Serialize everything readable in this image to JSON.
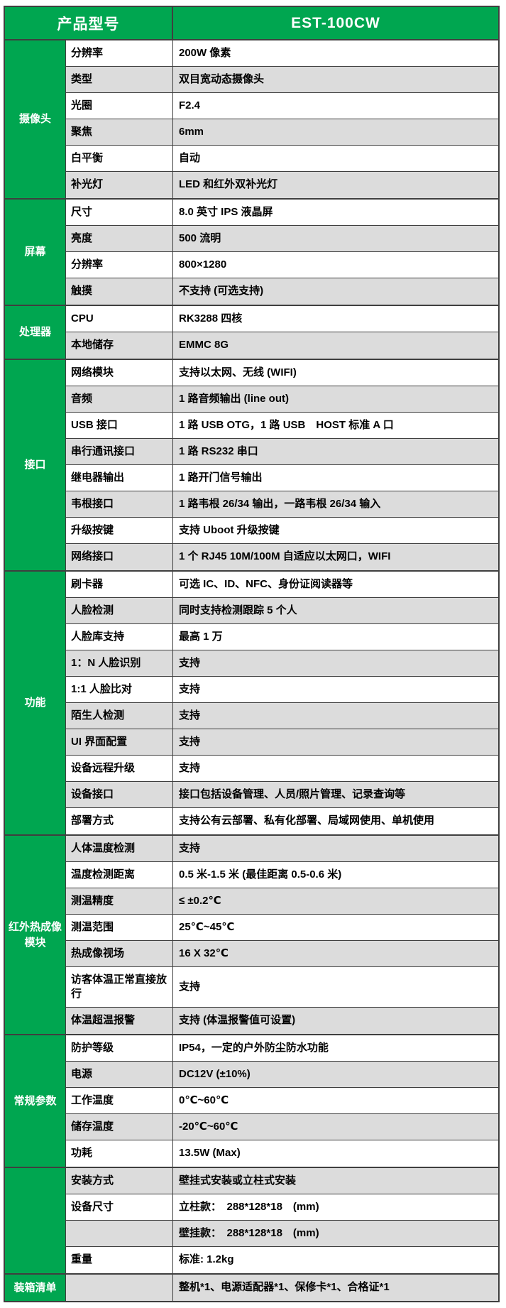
{
  "header": {
    "model_label": "产品型号",
    "model_value": "EST-100CW"
  },
  "colors": {
    "green": "#00a650",
    "gray_row": "#dcdcdc",
    "white_row": "#ffffff",
    "border": "#3f3f3f",
    "header_text": "#ffffff",
    "cell_text": "#000000"
  },
  "sections": [
    {
      "label": "摄像头",
      "rows": [
        {
          "param": "分辨率",
          "value": "200W 像素",
          "shade": "w"
        },
        {
          "param": "类型",
          "value": "双目宽动态摄像头",
          "shade": "g"
        },
        {
          "param": "光圈",
          "value": "F2.4",
          "shade": "w"
        },
        {
          "param": "聚焦",
          "value": "6mm",
          "shade": "g"
        },
        {
          "param": "白平衡",
          "value": "自动",
          "shade": "w"
        },
        {
          "param": "补光灯",
          "value": "LED 和红外双补光灯",
          "shade": "g"
        }
      ]
    },
    {
      "label": "屏幕",
      "rows": [
        {
          "param": "尺寸",
          "value": "8.0 英寸 IPS 液晶屏",
          "shade": "w"
        },
        {
          "param": "亮度",
          "value": "500 流明",
          "shade": "g"
        },
        {
          "param": "分辨率",
          "value": "800×1280",
          "shade": "w"
        },
        {
          "param": "触摸",
          "value": "不支持 (可选支持)",
          "shade": "g"
        }
      ]
    },
    {
      "label": "处理器",
      "rows": [
        {
          "param": "CPU",
          "value": "RK3288 四核",
          "shade": "w"
        },
        {
          "param": "本地储存",
          "value": "EMMC 8G",
          "shade": "g"
        }
      ]
    },
    {
      "label": "接口",
      "rows": [
        {
          "param": "网络模块",
          "value": "支持以太网、无线 (WIFI)",
          "shade": "w"
        },
        {
          "param": "音频",
          "value": "1 路音频输出 (line out)",
          "shade": "g"
        },
        {
          "param": "USB 接口",
          "value": "1 路 USB OTG，1 路 USB　HOST 标准 A 口",
          "shade": "w"
        },
        {
          "param": "串行通讯接口",
          "value": "1 路 RS232 串口",
          "shade": "g"
        },
        {
          "param": "继电器输出",
          "value": "1 路开门信号输出",
          "shade": "w"
        },
        {
          "param": "韦根接口",
          "value": "1 路韦根 26/34 输出，一路韦根 26/34 输入",
          "shade": "g"
        },
        {
          "param": "升级按键",
          "value": "支持 Uboot 升级按键",
          "shade": "w"
        },
        {
          "param": "网络接口",
          "value": "1 个 RJ45 10M/100M 自适应以太网口，WIFI",
          "shade": "g"
        }
      ]
    },
    {
      "label": "功能",
      "rows": [
        {
          "param": "刷卡器",
          "value": "可选 IC、ID、NFC、身份证阅读器等",
          "shade": "w"
        },
        {
          "param": "人脸检测",
          "value": "同时支持检测跟踪 5 个人",
          "shade": "g"
        },
        {
          "param": "人脸库支持",
          "value": "最高 1 万",
          "shade": "w"
        },
        {
          "param": "1：N 人脸识别",
          "value": "支持",
          "shade": "g"
        },
        {
          "param": "1:1 人脸比对",
          "value": "支持",
          "shade": "w"
        },
        {
          "param": "陌生人检测",
          "value": "支持",
          "shade": "g"
        },
        {
          "param": "UI 界面配置",
          "value": "支持",
          "shade": "g"
        },
        {
          "param": "设备远程升级",
          "value": "支持",
          "shade": "w"
        },
        {
          "param": "设备接口",
          "value": "接口包括设备管理、人员/照片管理、记录查询等",
          "shade": "g"
        },
        {
          "param": "部署方式",
          "value": "支持公有云部署、私有化部署、局域网使用、单机使用",
          "shade": "w"
        }
      ]
    },
    {
      "label": "红外热成像模块",
      "rows": [
        {
          "param": "人体温度检测",
          "value": "支持",
          "shade": "g"
        },
        {
          "param": "温度检测距离",
          "value": "0.5 米-1.5 米 (最佳距离 0.5-0.6 米)",
          "shade": "w"
        },
        {
          "param": "测温精度",
          "value": "≤ ±0.2℃",
          "shade": "g"
        },
        {
          "param": "测温范围",
          "value": "25℃~45℃",
          "shade": "w"
        },
        {
          "param": "热成像视场",
          "value": "16 X 32℃",
          "shade": "g"
        },
        {
          "param": "访客体温正常直接放行",
          "value": "支持",
          "shade": "w",
          "tall": true
        },
        {
          "param": "体温超温报警",
          "value": "支持 (体温报警值可设置)",
          "shade": "g"
        }
      ]
    },
    {
      "label": "常规参数",
      "rows": [
        {
          "param": "防护等级",
          "value": "IP54，一定的户外防尘防水功能",
          "shade": "w"
        },
        {
          "param": "电源",
          "value": "DC12V (±10%)",
          "shade": "g"
        },
        {
          "param": "工作温度",
          "value": "0℃~60℃",
          "shade": "w"
        },
        {
          "param": "储存温度",
          "value": "-20℃~60℃",
          "shade": "g"
        },
        {
          "param": "功耗",
          "value": "13.5W (Max)",
          "shade": "w"
        }
      ]
    },
    {
      "label": "",
      "rows": [
        {
          "param": "安装方式",
          "value": "壁挂式安装或立柱式安装",
          "shade": "g"
        },
        {
          "param": "设备尺寸",
          "value": "立柱款：　288*128*18　(mm)",
          "shade": "w"
        },
        {
          "param": "",
          "value": "壁挂款：　288*128*18　(mm)",
          "shade": "g"
        },
        {
          "param": "重量",
          "value": "标准: 1.2kg",
          "shade": "w"
        }
      ]
    },
    {
      "label": "装箱清单",
      "rows": [
        {
          "param": "",
          "value": "整机*1、电源适配器*1、保修卡*1、合格证*1",
          "shade": "g"
        }
      ]
    }
  ]
}
